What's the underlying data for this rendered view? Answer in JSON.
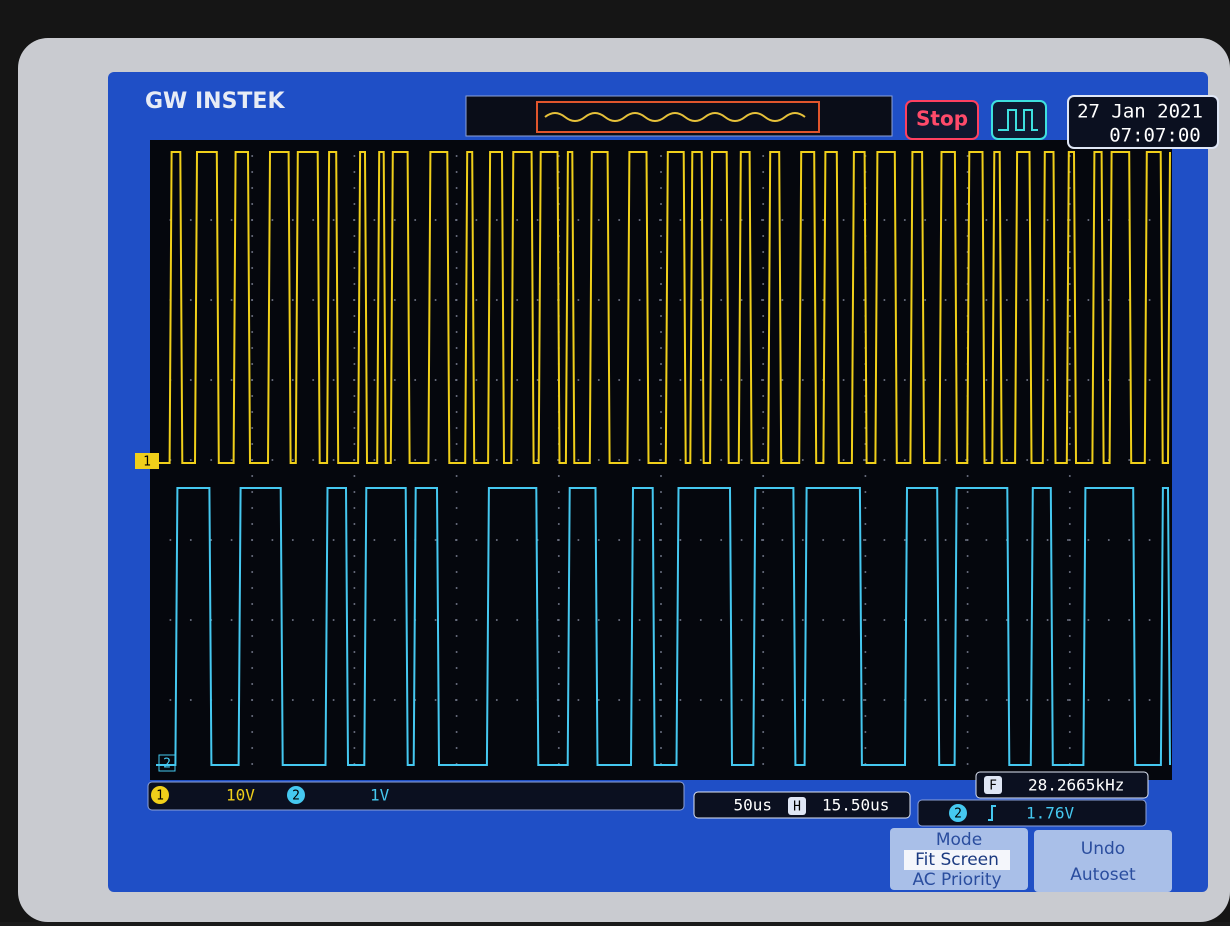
{
  "header": {
    "brand": "GW INSTEK",
    "run_state": "Stop",
    "date": "27 Jan 2021",
    "time": "07:07:00"
  },
  "channels": [
    {
      "label": "1",
      "scale": "10V"
    },
    {
      "label": "2",
      "scale": "1V"
    }
  ],
  "timebase": {
    "scale": "50us",
    "position_label": "H",
    "position": "15.50us"
  },
  "trigger": {
    "source": "2",
    "level": "1.76V"
  },
  "frequency": {
    "label": "F",
    "value": "28.2665kHz"
  },
  "menu": [
    {
      "title": "Mode",
      "options": [
        "Fit Screen",
        "AC Priority"
      ]
    },
    {
      "title": "Undo",
      "options": [
        "Autoset"
      ]
    }
  ]
}
